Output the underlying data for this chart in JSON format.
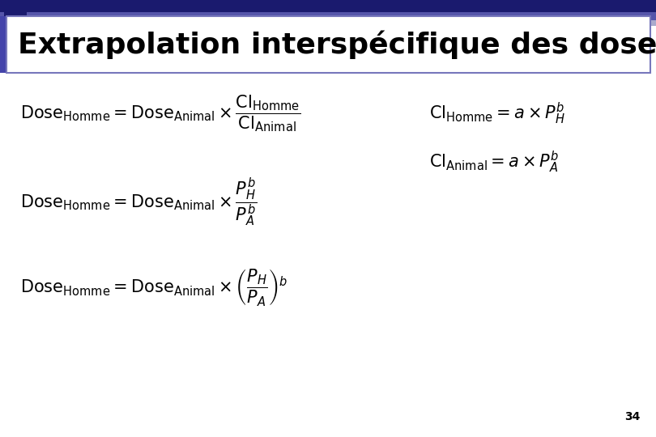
{
  "title": "Extrapolation interspécifique des doses",
  "title_text_color": "#000000",
  "title_bg_color": "#FFFFFF",
  "bg_color": "#FFFFFF",
  "page_number": "34",
  "text_color": "#000000",
  "border_color": "#7777BB",
  "dark_blue": "#1a1a6e",
  "med_blue": "#4444aa",
  "light_blue": "#aaaadd",
  "top_bar1_color": "#1a1a6e",
  "top_bar2_color": "#5555aa",
  "top_bar3_color": "#aaaacc"
}
